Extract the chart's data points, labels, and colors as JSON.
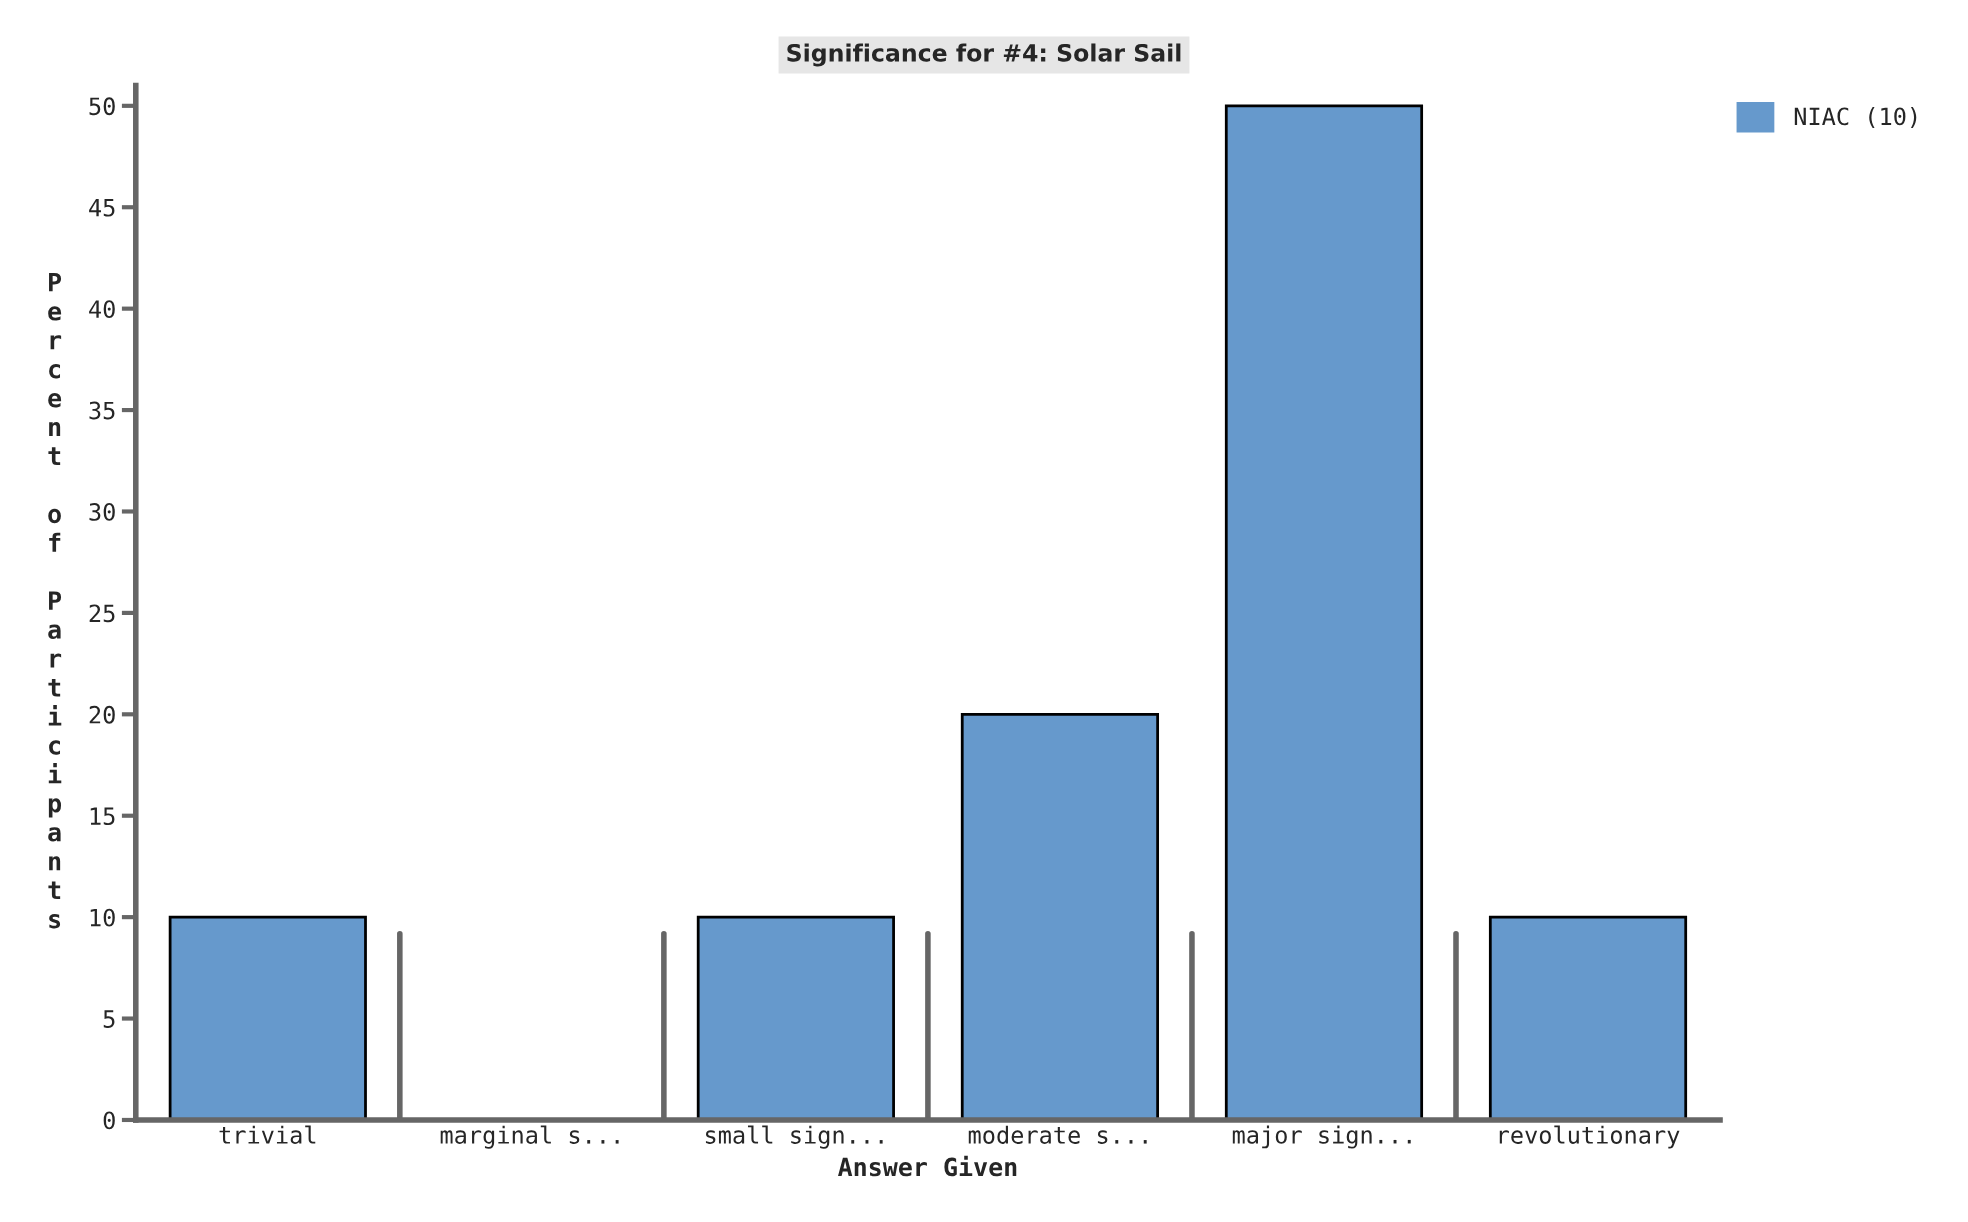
{
  "chart_data": {
    "type": "bar",
    "title": "Significance for #4: Solar Sail",
    "xlabel": "Answer Given",
    "ylabel": "Percent of Participants",
    "categories": [
      "trivial",
      "marginal s...",
      "small sign...",
      "moderate s...",
      "major sign...",
      "revolutionary"
    ],
    "series": [
      {
        "name": "NIAC (10)",
        "color": "#6699cc",
        "values": [
          10,
          0,
          10,
          20,
          50,
          10
        ]
      }
    ],
    "ylim": [
      0,
      51
    ],
    "yticks": [
      0,
      5,
      10,
      15,
      20,
      25,
      30,
      35,
      40,
      45,
      50
    ],
    "grid": false,
    "legend": "top right"
  }
}
